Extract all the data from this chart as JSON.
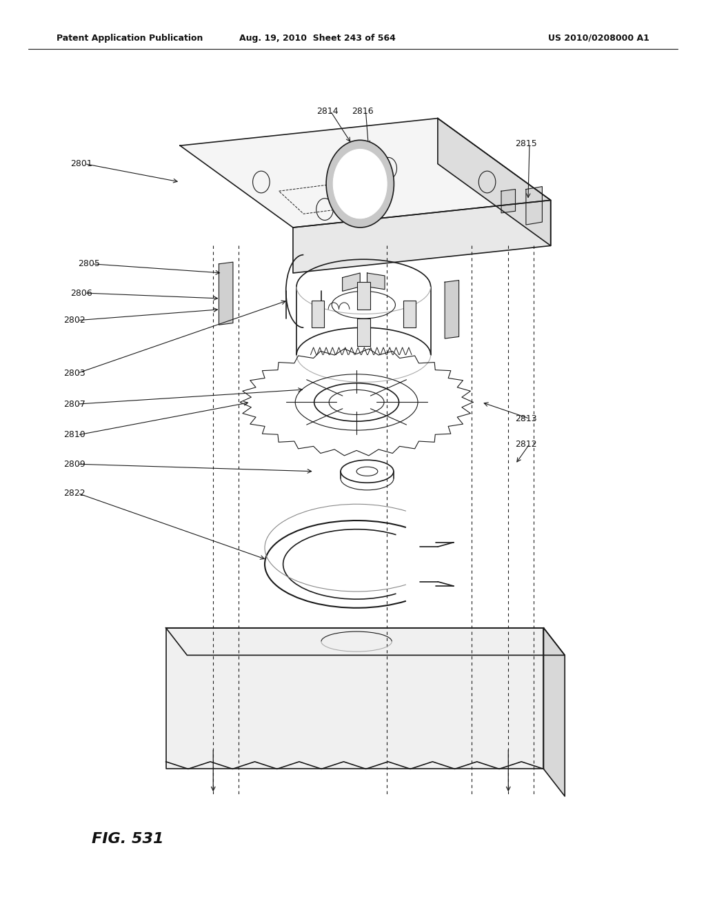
{
  "header_left": "Patent Application Publication",
  "header_center": "Aug. 19, 2010  Sheet 243 of 564",
  "header_right": "US 2010/0208000 A1",
  "figure_label": "FIG. 531",
  "background_color": "#ffffff",
  "line_color": "#1a1a1a"
}
